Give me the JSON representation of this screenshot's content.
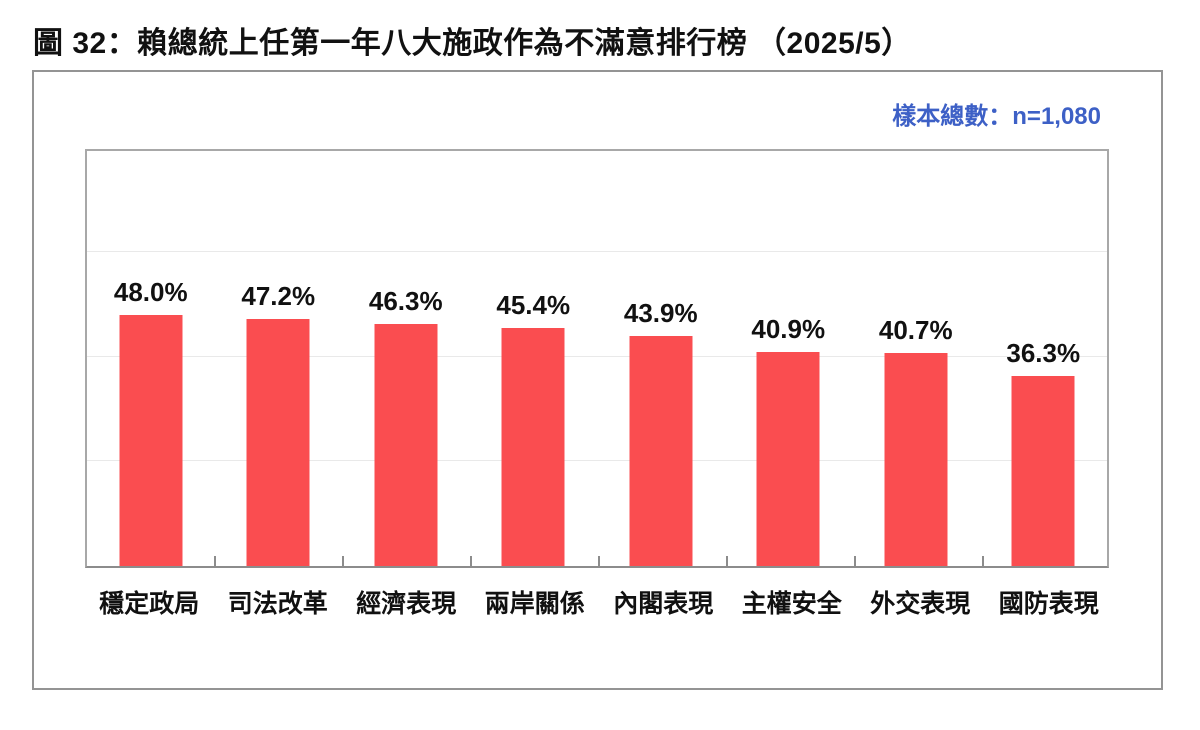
{
  "page": {
    "title": "圖 32：賴總統上任第一年八大施政作為不滿意排行榜 （2025/5）",
    "sample_label": "樣本總數：n=1,080"
  },
  "colors": {
    "bar": "#FA4D50",
    "sample_text": "#3D60C6",
    "grid": "#E9E9E9",
    "axis": "#8C8C8C",
    "plot_border": "#A8A8A8",
    "card_border": "#949494",
    "text": "#111111"
  },
  "chart_data": {
    "type": "bar",
    "title": "賴總統上任第一年八大施政作為不滿意排行榜（2025/5）",
    "sample_note": "樣本總數：n=1,080",
    "categories": [
      "穩定政局",
      "司法改革",
      "經濟表現",
      "兩岸關係",
      "內閣表現",
      "主權安全",
      "外交表現",
      "國防表現"
    ],
    "values": [
      48.0,
      47.2,
      46.3,
      45.4,
      43.9,
      40.9,
      40.7,
      36.3
    ],
    "value_labels": [
      "48.0%",
      "47.2%",
      "46.3%",
      "45.4%",
      "43.9%",
      "40.9%",
      "40.7%",
      "36.3%"
    ],
    "xlabel": "",
    "ylabel": "",
    "ylim": [
      0,
      80
    ],
    "gridlines_y": [
      20,
      40,
      60
    ],
    "grid": "horizontal",
    "legend": "none",
    "bar_color": "#FA4D50"
  }
}
